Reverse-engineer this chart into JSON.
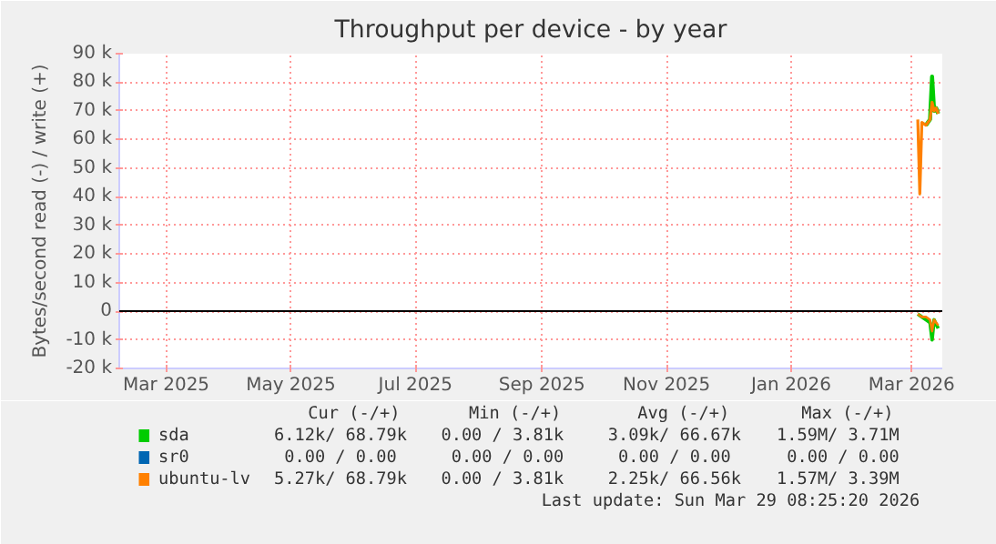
{
  "chart_data": {
    "type": "line",
    "title": "Throughput per device - by year",
    "ylabel": "Bytes/second read (-) / write (+)",
    "xlim": [
      "2025-02-06",
      "2026-03-16"
    ],
    "xticks": [
      {
        "value": "2025-03-01",
        "label": "Mar 2025"
      },
      {
        "value": "2025-05-01",
        "label": "May 2025"
      },
      {
        "value": "2025-07-01",
        "label": "Jul 2025"
      },
      {
        "value": "2025-09-01",
        "label": "Sep 2025"
      },
      {
        "value": "2025-11-01",
        "label": "Nov 2025"
      },
      {
        "value": "2026-01-01",
        "label": "Jan 2026"
      },
      {
        "value": "2026-03-01",
        "label": "Mar 2026"
      }
    ],
    "ylim": [
      -20000,
      90000
    ],
    "yticks": [
      {
        "value": -20000,
        "label": "-20 k"
      },
      {
        "value": -10000,
        "label": "-10 k"
      },
      {
        "value": 0,
        "label": "0"
      },
      {
        "value": 10000,
        "label": "10 k"
      },
      {
        "value": 20000,
        "label": "20 k"
      },
      {
        "value": 30000,
        "label": "30 k"
      },
      {
        "value": 40000,
        "label": "40 k"
      },
      {
        "value": 50000,
        "label": "50 k"
      },
      {
        "value": 60000,
        "label": "60 k"
      },
      {
        "value": 70000,
        "label": "70 k"
      },
      {
        "value": 80000,
        "label": "80 k"
      },
      {
        "value": 90000,
        "label": "90 k"
      }
    ],
    "grid": true,
    "legend": "bottom",
    "line_style": "solid",
    "ref_lines": [
      {
        "axis": "y",
        "value": 0,
        "color": "#000000"
      }
    ],
    "series": [
      {
        "name": "sr0",
        "color": "#0066b3"
      },
      {
        "name": "sda",
        "color": "#00cc00",
        "x": [
          "2026-03-08",
          "2026-03-10",
          "2026-03-11",
          "2026-03-12",
          "2026-03-13",
          "2026-03-14"
        ],
        "values": [
          65000,
          67000,
          82000,
          70000,
          71000,
          69000
        ]
      },
      {
        "color": "#00cc00",
        "x": [
          "2026-03-04",
          "2026-03-06",
          "2026-03-08",
          "2026-03-10",
          "2026-03-11",
          "2026-03-12",
          "2026-03-14"
        ],
        "values": [
          -1000,
          -2000,
          -3000,
          -4000,
          -10000,
          -3000,
          -6000
        ]
      },
      {
        "name": "ubuntu-lv",
        "color": "#ff8000",
        "x": [
          "2026-03-04",
          "2026-03-05",
          "2026-03-06",
          "2026-03-08",
          "2026-03-10",
          "2026-03-11",
          "2026-03-12",
          "2026-03-13",
          "2026-03-14"
        ],
        "values": [
          67000,
          41000,
          66000,
          65000,
          67000,
          73000,
          70000,
          71000,
          69000
        ]
      },
      {
        "color": "#ff8000",
        "x": [
          "2026-03-04",
          "2026-03-06",
          "2026-03-08",
          "2026-03-10",
          "2026-03-11",
          "2026-03-12",
          "2026-03-14"
        ],
        "values": [
          -1000,
          -2000,
          -2000,
          -3000,
          -7000,
          -3000,
          -5000
        ]
      }
    ],
    "annotations": [
      "Cur (-/+)",
      "Min (-/+)",
      "Avg (-/+)",
      "Max (-/+)",
      "6.12k/  68.79k",
      "0.00 /   3.81k",
      "3.09k/  66.67k",
      "1.59M/   3.71M",
      "0.00 /   0.00",
      "0.00 /   0.00",
      "0.00 /   0.00",
      "0.00 /   0.00",
      "5.27k/  68.79k",
      "0.00 /   3.81k",
      "2.25k/  66.56k",
      "1.57M/   3.39M",
      "Last update: Sun Mar 29 08:25:20 2026"
    ]
  }
}
